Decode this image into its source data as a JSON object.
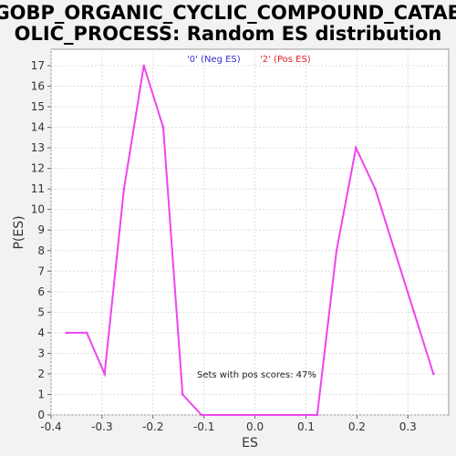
{
  "chart_data": {
    "type": "line",
    "title_lines": [
      "GOBP_ORGANIC_CYCLIC_COMPOUND_CATAB",
      "OLIC_PROCESS: Random ES distribution"
    ],
    "xlabel": "ES",
    "ylabel": "P(ES)",
    "xlim": [
      -0.4,
      0.38
    ],
    "ylim": [
      0,
      17.8
    ],
    "x_ticks": [
      -0.4,
      -0.3,
      -0.2,
      -0.1,
      0.0,
      0.1,
      0.2,
      0.3
    ],
    "x_tick_labels": [
      "-0.4",
      "-0.3",
      "-0.2",
      "-0.1",
      "0.0",
      "0.1",
      "0.2",
      "0.3"
    ],
    "y_ticks": [
      0,
      1,
      2,
      3,
      4,
      5,
      6,
      7,
      8,
      9,
      10,
      11,
      12,
      13,
      14,
      15,
      16,
      17
    ],
    "y_tick_labels": [
      "0",
      "1",
      "2",
      "3",
      "4",
      "5",
      "6",
      "7",
      "8",
      "9",
      "10",
      "11",
      "12",
      "13",
      "14",
      "15",
      "16",
      "17"
    ],
    "grid": true,
    "legend": [
      {
        "label": "'0' (Neg ES)",
        "color": "#3333cc"
      },
      {
        "label": "'2' (Pos ES)",
        "color": "#dd2222"
      }
    ],
    "annotation": "Sets with pos scores: 47%",
    "series": [
      {
        "color": "#ee44ee",
        "x": [
          -0.37,
          -0.33,
          -0.295,
          -0.257,
          -0.218,
          -0.18,
          -0.142,
          -0.105,
          -0.067,
          -0.03,
          0.008,
          0.046,
          0.085,
          0.122,
          0.16,
          0.198,
          0.236,
          0.274,
          0.312,
          0.35
        ],
        "y": [
          4,
          4,
          2,
          11,
          17,
          14,
          1,
          0,
          0,
          0,
          0,
          0,
          0,
          0,
          8,
          13,
          11,
          8,
          5,
          2
        ]
      }
    ]
  }
}
